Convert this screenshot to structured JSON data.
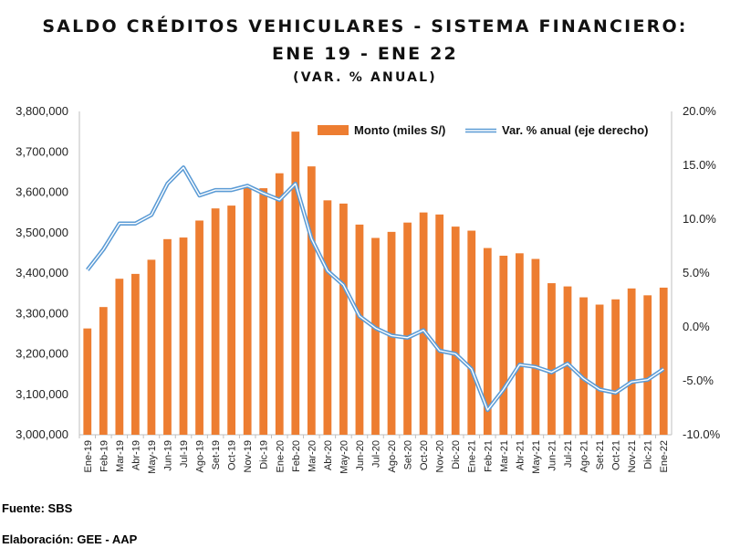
{
  "title": "SALDO CRÉDITOS VEHICULARES - SISTEMA FINANCIERO:",
  "subtitle": "ENE 19 - ENE 22",
  "subtitle2": "(VAR. % ANUAL)",
  "footer": {
    "source": "Fuente: SBS",
    "credit": "Elaboración: GEE - AAP"
  },
  "colors": {
    "bar": "#ED7D31",
    "line": "#5B9BD5",
    "line_inner": "#ffffff",
    "grid": "#D9D9D9",
    "axis": "#BFBFBF"
  },
  "chart_data": {
    "type": "bar",
    "categories": [
      "Ene-19",
      "Feb-19",
      "Mar-19",
      "Abr-19",
      "May-19",
      "Jun-19",
      "Jul-19",
      "Ago-19",
      "Set-19",
      "Oct-19",
      "Nov-19",
      "Dic-19",
      "Ene-20",
      "Feb-20",
      "Mar-20",
      "Abr-20",
      "May-20",
      "Jun-20",
      "Jul-20",
      "Ago-20",
      "Set-20",
      "Oct-20",
      "Nov-20",
      "Dic-20",
      "Ene-21",
      "Feb-21",
      "Mar-21",
      "Abr-21",
      "May-21",
      "Jun-21",
      "Jul-21",
      "Ago-21",
      "Set-21",
      "Oct-21",
      "Nov-21",
      "Dic-21",
      "Ene-22"
    ],
    "series": [
      {
        "name": "Monto (miles S/)",
        "type": "bar",
        "axis": "left",
        "values": [
          3263000,
          3316000,
          3386000,
          3398000,
          3433000,
          3484000,
          3488000,
          3530000,
          3560000,
          3567000,
          3614000,
          3610000,
          3647000,
          3750000,
          3664000,
          3580000,
          3572000,
          3520000,
          3487000,
          3502000,
          3525000,
          3550000,
          3545000,
          3515000,
          3505000,
          3462000,
          3443000,
          3449000,
          3435000,
          3375000,
          3367000,
          3340000,
          3322000,
          3335000,
          3362000,
          3345000,
          3364000
        ]
      },
      {
        "name": "Var. % anual (eje derecho)",
        "type": "line",
        "axis": "right",
        "values": [
          5.3,
          7.2,
          9.6,
          9.6,
          10.4,
          13.3,
          14.8,
          12.2,
          12.7,
          12.7,
          13.1,
          12.4,
          11.8,
          13.3,
          8.2,
          5.2,
          3.9,
          1.0,
          -0.1,
          -0.8,
          -1.0,
          -0.3,
          -2.2,
          -2.5,
          -3.9,
          -7.7,
          -5.8,
          -3.5,
          -3.7,
          -4.2,
          -3.4,
          -4.8,
          -5.8,
          -6.1,
          -5.1,
          -4.9,
          -3.9
        ]
      }
    ],
    "y_left": {
      "min": 3000000,
      "max": 3800000,
      "step": 100000,
      "ticks": [
        "3,000,000",
        "3,100,000",
        "3,200,000",
        "3,300,000",
        "3,400,000",
        "3,500,000",
        "3,600,000",
        "3,700,000",
        "3,800,000"
      ]
    },
    "y_right": {
      "min": -10,
      "max": 20,
      "step": 5,
      "ticks": [
        "-10.0%",
        "-5.0%",
        "0.0%",
        "5.0%",
        "10.0%",
        "15.0%",
        "20.0%"
      ]
    },
    "grid": false,
    "legend_position": "top-right"
  }
}
